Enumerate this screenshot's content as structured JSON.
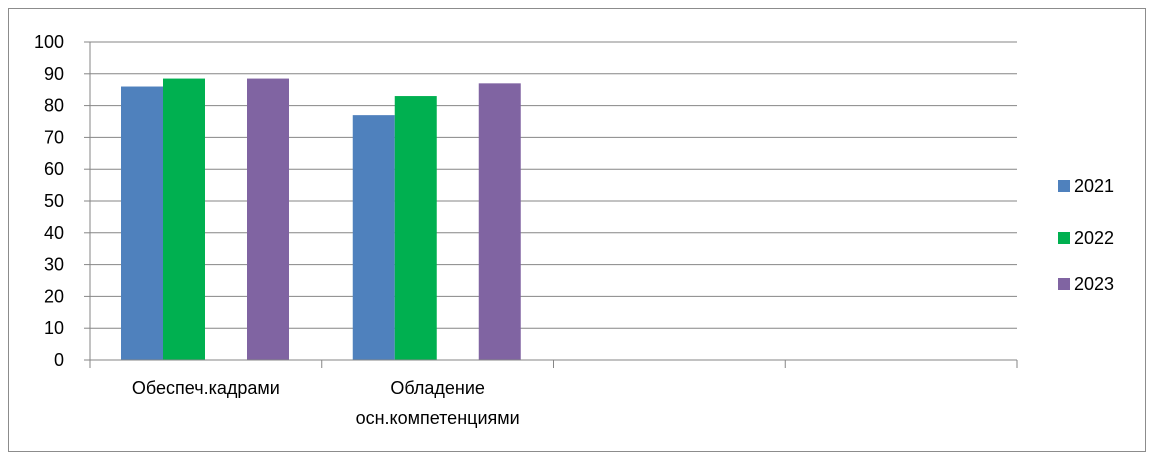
{
  "chart_data": {
    "type": "bar",
    "categories": [
      "Обеспеч.кадрами",
      "Обладение осн.компетенциями",
      "",
      ""
    ],
    "category_lines": [
      [
        "Обеспеч.кадрами"
      ],
      [
        "Обладение",
        "осн.компетенциями"
      ],
      [
        ""
      ],
      [
        ""
      ]
    ],
    "series": [
      {
        "name": "2021",
        "color": "#4f81bd",
        "values": [
          86,
          77,
          null,
          null
        ]
      },
      {
        "name": "2022",
        "color": "#00b050",
        "values": [
          88.5,
          83,
          null,
          null
        ]
      },
      {
        "name": "2023",
        "color": "#8064a2",
        "values": [
          88.5,
          87,
          null,
          null
        ]
      }
    ],
    "ylim": [
      0,
      100
    ],
    "yticks": [
      0,
      10,
      20,
      30,
      40,
      50,
      60,
      70,
      80,
      90,
      100
    ],
    "grid": true,
    "legend": "right"
  }
}
